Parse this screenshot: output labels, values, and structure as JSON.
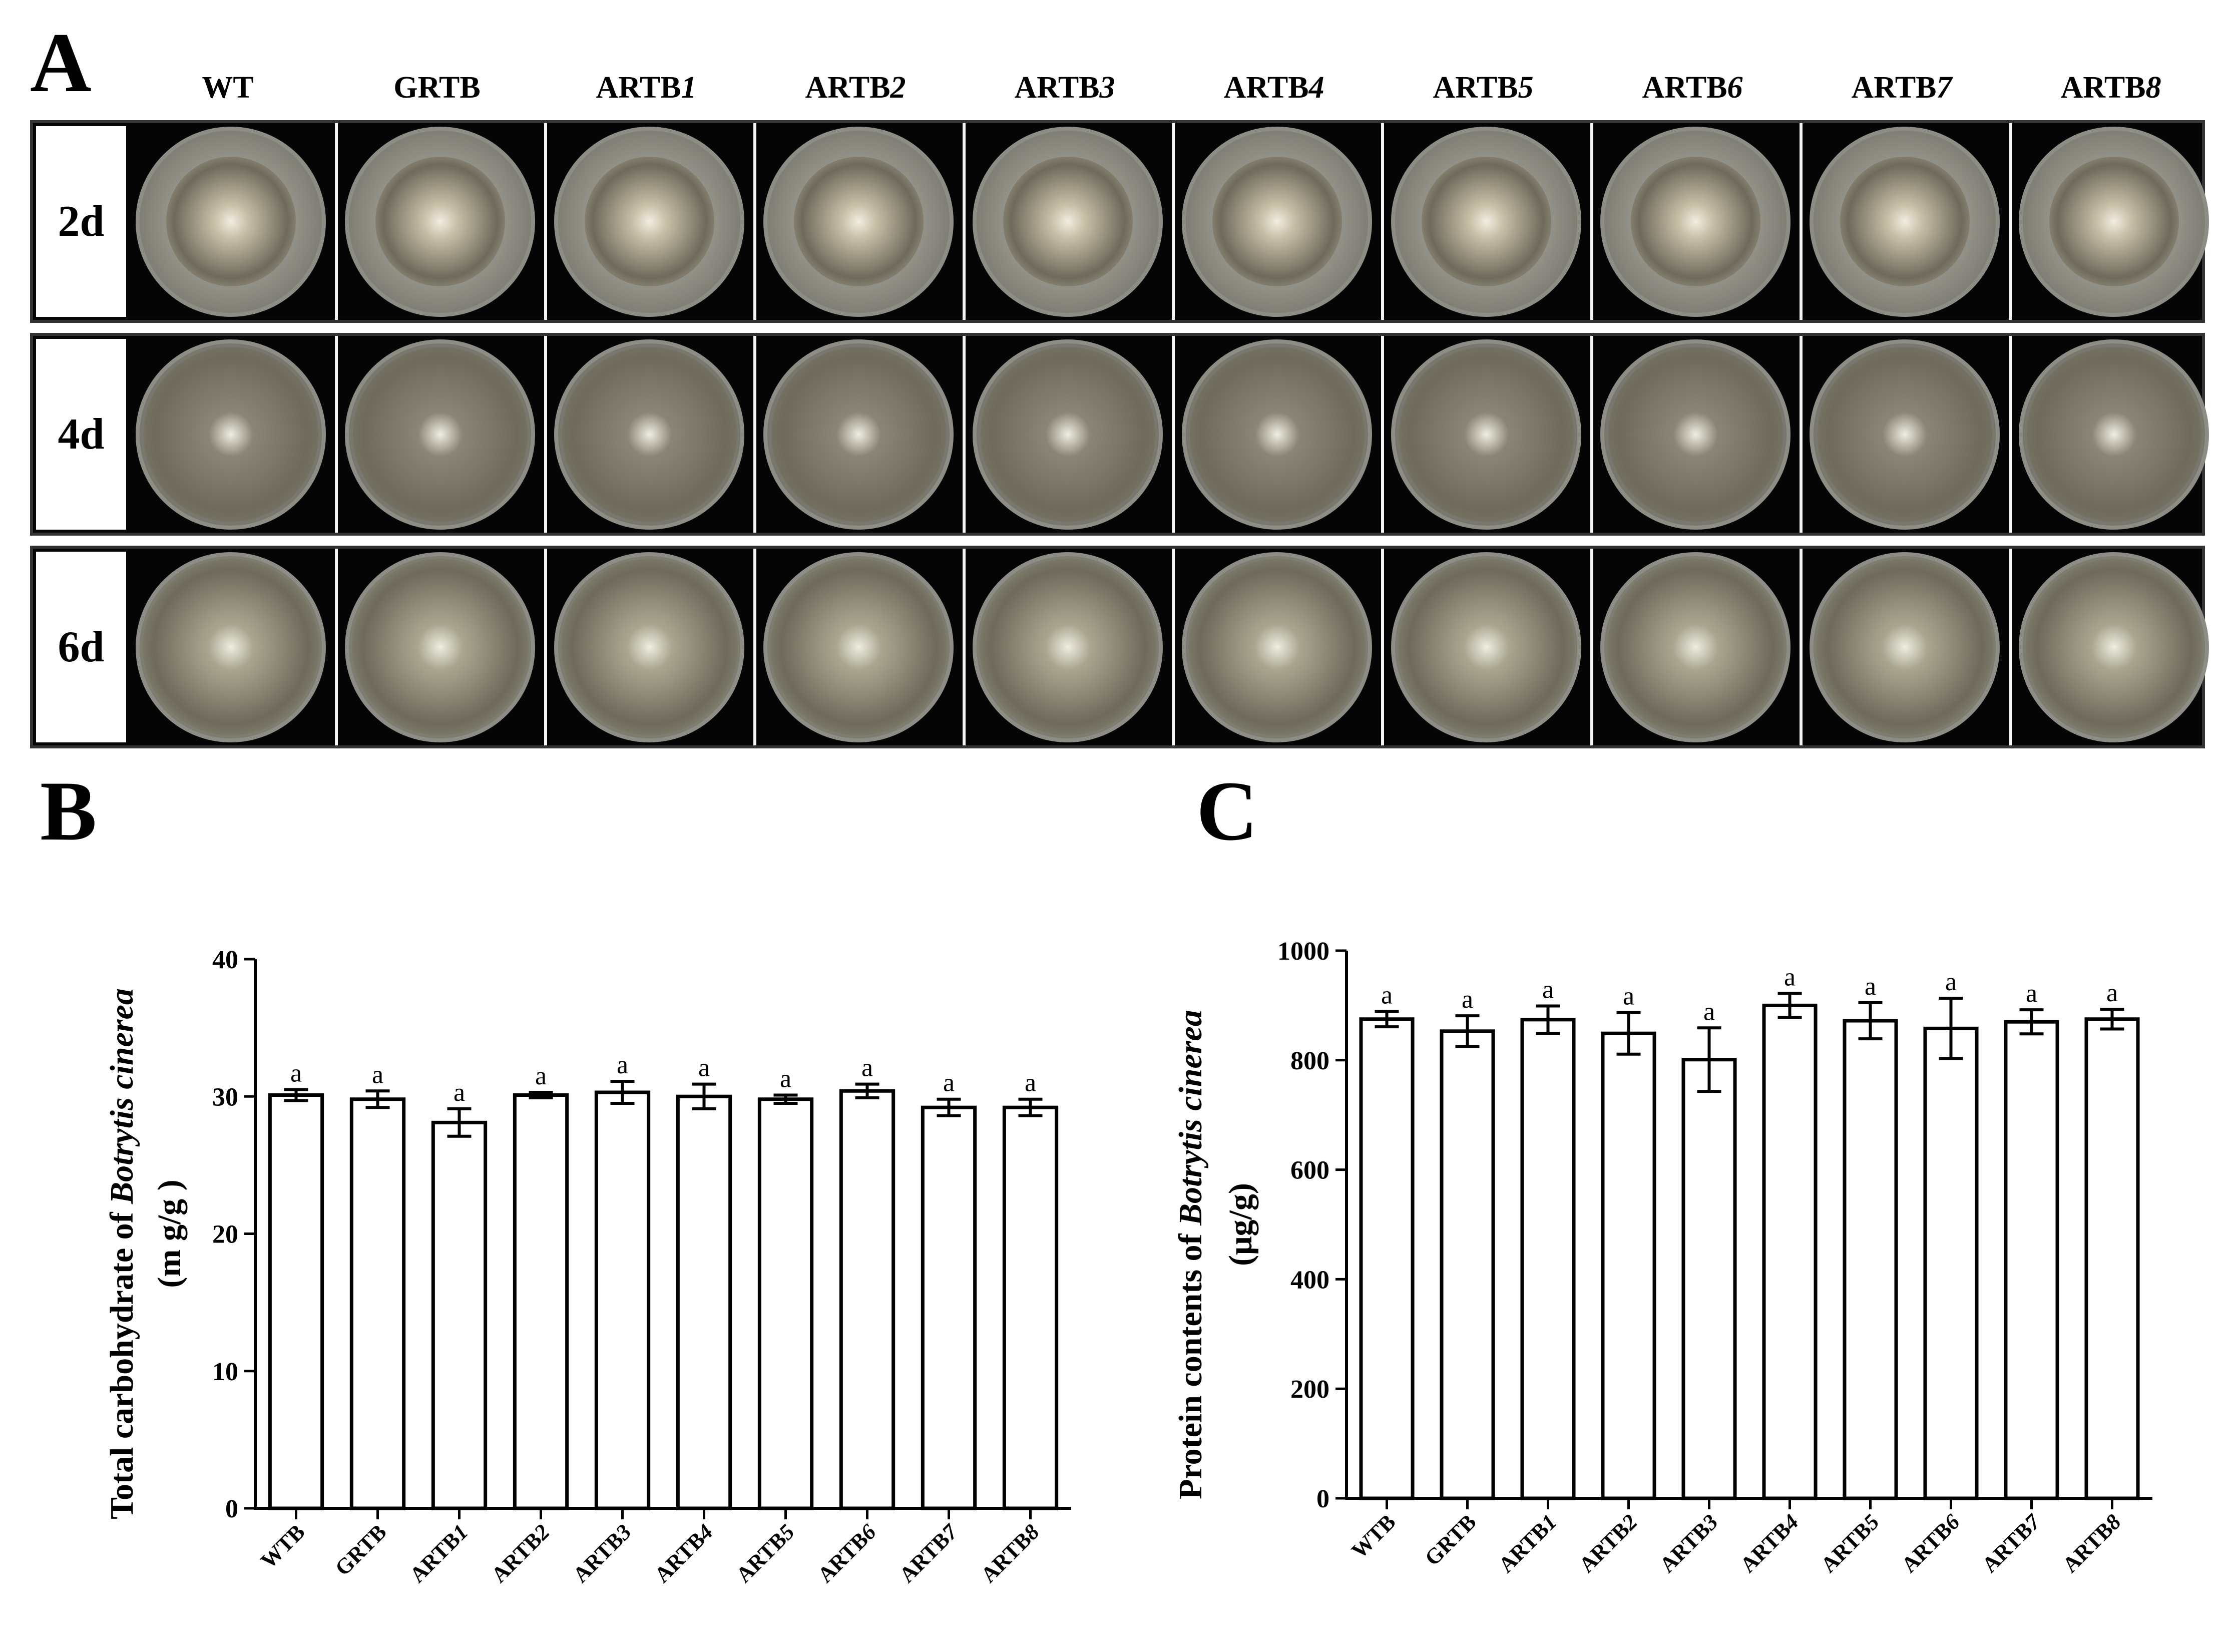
{
  "panels": {
    "a": "A",
    "b": "B",
    "c": "C"
  },
  "colors": {
    "ink": "#000000",
    "plate_bg": "#050505",
    "label_bg": "#ffffff"
  },
  "panel_a": {
    "column_headers": [
      {
        "base": "WT",
        "num": ""
      },
      {
        "base": "GRTB",
        "num": ""
      },
      {
        "base": "ARTB",
        "num": "1"
      },
      {
        "base": "ARTB",
        "num": "2"
      },
      {
        "base": "ARTB",
        "num": "3"
      },
      {
        "base": "ARTB",
        "num": "4"
      },
      {
        "base": "ARTB",
        "num": "5"
      },
      {
        "base": "ARTB",
        "num": "6"
      },
      {
        "base": "ARTB",
        "num": "7"
      },
      {
        "base": "ARTB",
        "num": "8"
      }
    ],
    "rows": [
      {
        "label": "2d",
        "colony_fraction": 0.72,
        "colony_color": "#c9c0a8",
        "plate_color": "#bfbfb5"
      },
      {
        "label": "4d",
        "colony_fraction": 0.97,
        "colony_color": "#8a8576",
        "plate_color": "#9a978c"
      },
      {
        "label": "6d",
        "colony_fraction": 0.98,
        "colony_color": "#a9a690",
        "plate_color": "#b2b09c"
      }
    ]
  },
  "chart_data": [
    {
      "type": "bar",
      "panel": "B",
      "ylabel_prefix": "Total carbohydrate of ",
      "ylabel_italic": "Botrytis cinerea",
      "ylabel_unit": "(m g/g )",
      "ylim": [
        0,
        40
      ],
      "yticks": [
        "0",
        "10",
        "20",
        "30",
        "40"
      ],
      "categories": [
        {
          "base": "WTB",
          "num": ""
        },
        {
          "base": "GRTB",
          "num": ""
        },
        {
          "base": "ARTB",
          "num": "1"
        },
        {
          "base": "ARTB",
          "num": "2"
        },
        {
          "base": "ARTB",
          "num": "3"
        },
        {
          "base": "ARTB",
          "num": "4"
        },
        {
          "base": "ARTB",
          "num": "5"
        },
        {
          "base": "ARTB",
          "num": "6"
        },
        {
          "base": "ARTB",
          "num": "7"
        },
        {
          "base": "ARTB",
          "num": "8"
        }
      ],
      "values": [
        30.1,
        29.8,
        28.1,
        30.1,
        30.3,
        30.0,
        29.8,
        30.4,
        29.2,
        29.2
      ],
      "errors": [
        0.4,
        0.6,
        1.0,
        0.2,
        0.8,
        0.9,
        0.3,
        0.5,
        0.6,
        0.6
      ],
      "significance": [
        "a",
        "a",
        "a",
        "a",
        "a",
        "a",
        "a",
        "a",
        "a",
        "a"
      ],
      "grid": false
    },
    {
      "type": "bar",
      "panel": "C",
      "ylabel_prefix": "Protein contents of ",
      "ylabel_italic": "Botrytis cinerea",
      "ylabel_unit": "(μg/g)",
      "ylim": [
        0,
        1000
      ],
      "yticks": [
        "0",
        "200",
        "400",
        "600",
        "800",
        "1000"
      ],
      "categories": [
        {
          "base": "WTB",
          "num": ""
        },
        {
          "base": "GRTB",
          "num": ""
        },
        {
          "base": "ARTB",
          "num": "1"
        },
        {
          "base": "ARTB",
          "num": "2"
        },
        {
          "base": "ARTB",
          "num": "3"
        },
        {
          "base": "ARTB",
          "num": "4"
        },
        {
          "base": "ARTB",
          "num": "5"
        },
        {
          "base": "ARTB",
          "num": "6"
        },
        {
          "base": "ARTB",
          "num": "7"
        },
        {
          "base": "ARTB",
          "num": "8"
        }
      ],
      "values": [
        875,
        853,
        874,
        849,
        801,
        900,
        872,
        858,
        870,
        875
      ],
      "errors": [
        14,
        28,
        25,
        38,
        58,
        22,
        33,
        55,
        22,
        18
      ],
      "significance": [
        "a",
        "a",
        "a",
        "a",
        "a",
        "a",
        "a",
        "a",
        "a",
        "a"
      ],
      "grid": false
    }
  ]
}
